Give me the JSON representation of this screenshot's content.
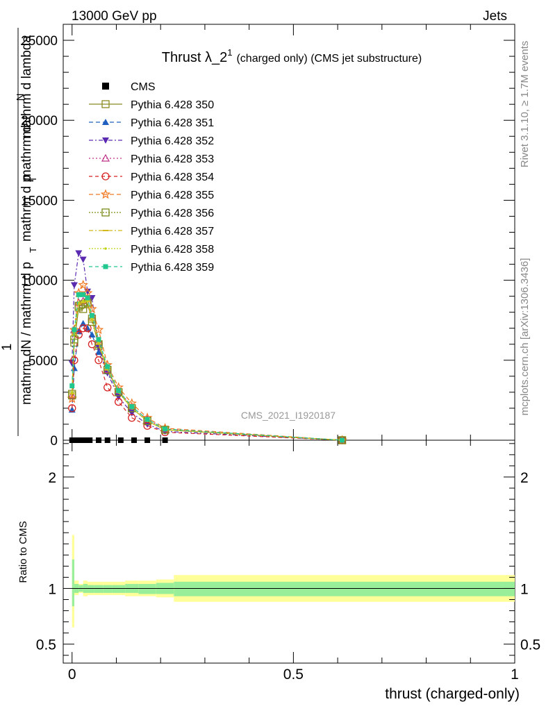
{
  "header": {
    "left": "13000 GeV pp",
    "right": "Jets"
  },
  "side_text": {
    "rivet": "Rivet 3.1.10, ≥ 1.7M events",
    "mcplots": "mcplots.cern.ch [arXiv:1306.3436]"
  },
  "chart_data": [
    {
      "type": "line",
      "title_main": "Thrust λ_2",
      "title_sup": "1",
      "title_rest": "(charged only) (CMS jet substructure)",
      "watermark": "CMS_2021_I1920187",
      "ylabel_lines": [
        "1",
        "mathrm d",
        "N",
        "mathrm dN / mathrm d p",
        "T",
        "mathrm d p",
        "T",
        "mathrm d lambda"
      ],
      "xlim": [
        -0.02,
        1.0
      ],
      "ylim": [
        0,
        26000
      ],
      "ytick_labels": [
        "0",
        "5000",
        "10000",
        "15000",
        "20000",
        "25000"
      ],
      "ytick_values": [
        0,
        5000,
        10000,
        15000,
        20000,
        25000
      ],
      "legend_position": "top-left",
      "data_series": {
        "name": "CMS",
        "x": [
          0.0,
          0.01,
          0.02,
          0.03,
          0.04,
          0.06,
          0.08,
          0.11,
          0.14,
          0.17,
          0.21
        ],
        "y": [
          0,
          0,
          0,
          0,
          0,
          0,
          0,
          0,
          0,
          0,
          0
        ]
      },
      "x": [
        0.0,
        0.005,
        0.015,
        0.025,
        0.035,
        0.045,
        0.06,
        0.08,
        0.105,
        0.135,
        0.17,
        0.21,
        0.61
      ],
      "series": [
        {
          "name": "Pythia 6.428 350",
          "color": "#8a8a20",
          "marker": "square-open",
          "dash": "",
          "values": [
            2900,
            6100,
            8300,
            8200,
            8500,
            7600,
            5900,
            4400,
            3000,
            2000,
            1200,
            650,
            0
          ]
        },
        {
          "name": "Pythia 6.428 351",
          "color": "#1f5fbf",
          "marker": "triangle-up",
          "dash": "6,4",
          "values": [
            1900,
            4500,
            6800,
            7300,
            7000,
            6600,
            5500,
            4300,
            3000,
            2000,
            1200,
            650,
            0
          ]
        },
        {
          "name": "Pythia 6.428 352",
          "color": "#5a2ab0",
          "marker": "triangle-down",
          "dash": "6,3,2,3",
          "values": [
            4800,
            9700,
            11700,
            11300,
            9300,
            8900,
            5800,
            4200,
            2700,
            1700,
            1000,
            550,
            0
          ]
        },
        {
          "name": "Pythia 6.428 353",
          "color": "#c0308a",
          "marker": "triangle-open",
          "dash": "2,3",
          "values": [
            2800,
            6900,
            8600,
            8700,
            8900,
            7700,
            6200,
            4400,
            3100,
            2100,
            1300,
            700,
            0
          ]
        },
        {
          "name": "Pythia 6.428 354",
          "color": "#d62020",
          "marker": "circle-open",
          "dash": "5,4",
          "values": [
            2000,
            5000,
            6600,
            7000,
            7000,
            6000,
            5000,
            3300,
            2400,
            1400,
            900,
            500,
            0
          ]
        },
        {
          "name": "Pythia 6.428 355",
          "color": "#f07820",
          "marker": "star-open",
          "dash": "6,4",
          "values": [
            2600,
            6900,
            9200,
            9700,
            9200,
            8200,
            6900,
            4700,
            3300,
            2300,
            1400,
            750,
            0
          ]
        },
        {
          "name": "Pythia 6.428 356",
          "color": "#7a8a18",
          "marker": "square-open",
          "dash": "2,2",
          "values": [
            2800,
            6300,
            8400,
            8500,
            8600,
            7400,
            6000,
            4400,
            3000,
            2000,
            1200,
            650,
            0
          ]
        },
        {
          "name": "Pythia 6.428 357",
          "color": "#d4b818",
          "marker": "dash",
          "dash": "6,3,2,3",
          "values": [
            2900,
            6600,
            8500,
            8600,
            8700,
            7500,
            6000,
            4400,
            3000,
            2000,
            1200,
            650,
            0
          ]
        },
        {
          "name": "Pythia 6.428 358",
          "color": "#c2d418",
          "marker": "dot",
          "dash": "2,2",
          "values": [
            3000,
            6700,
            8600,
            8700,
            8700,
            7600,
            6100,
            4500,
            3000,
            2000,
            1200,
            650,
            0
          ]
        },
        {
          "name": "Pythia 6.428 359",
          "color": "#20c890",
          "marker": "square",
          "dash": "5,4",
          "values": [
            3400,
            6900,
            9100,
            9100,
            8900,
            7800,
            6300,
            4600,
            3100,
            2100,
            1300,
            700,
            0
          ]
        }
      ]
    },
    {
      "type": "area",
      "ylabel": "Ratio to CMS",
      "xlabel": "thrust (charged-only)",
      "xlim": [
        -0.02,
        1.0
      ],
      "ylim": [
        0.33,
        2.33
      ],
      "ytick_labels": [
        "0.5",
        "1",
        "2"
      ],
      "ytick_values": [
        0.5,
        1.0,
        2.0
      ],
      "xtick_labels": [
        "0",
        "0.5",
        "1"
      ],
      "xtick_values": [
        0,
        0.5,
        1.0
      ],
      "band_edges": [
        0.0,
        0.005,
        0.015,
        0.025,
        0.035,
        0.05,
        0.07,
        0.09,
        0.12,
        0.15,
        0.19,
        0.23,
        1.0
      ],
      "inner_band": [
        [
          0.84,
          1.26
        ],
        [
          0.96,
          1.04
        ],
        [
          0.97,
          1.03
        ],
        [
          0.96,
          1.04
        ],
        [
          0.96,
          1.03
        ],
        [
          0.96,
          1.03
        ],
        [
          0.96,
          1.03
        ],
        [
          0.96,
          1.03
        ],
        [
          0.96,
          1.04
        ],
        [
          0.95,
          1.04
        ],
        [
          0.95,
          1.05
        ],
        [
          0.93,
          1.06
        ]
      ],
      "outer_band": [
        [
          0.65,
          1.48
        ],
        [
          0.94,
          1.07
        ],
        [
          0.96,
          1.04
        ],
        [
          0.93,
          1.07
        ],
        [
          0.94,
          1.06
        ],
        [
          0.94,
          1.06
        ],
        [
          0.94,
          1.06
        ],
        [
          0.94,
          1.06
        ],
        [
          0.93,
          1.07
        ],
        [
          0.93,
          1.07
        ],
        [
          0.92,
          1.08
        ],
        [
          0.88,
          1.12
        ]
      ]
    }
  ]
}
